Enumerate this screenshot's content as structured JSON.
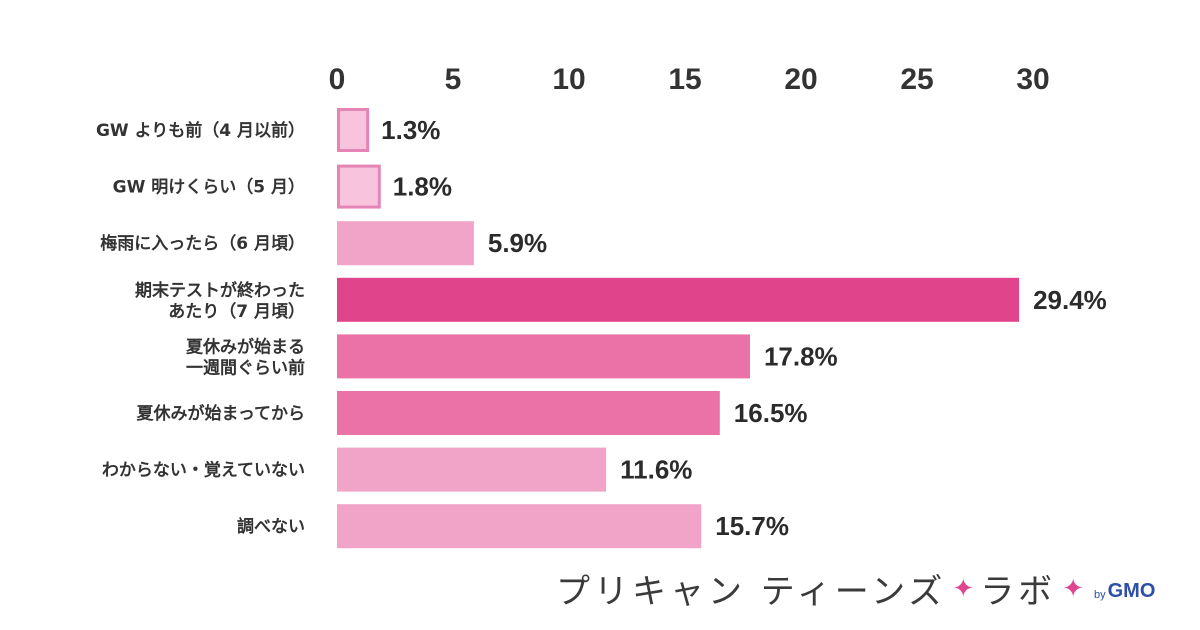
{
  "chart_data": {
    "type": "bar",
    "orientation": "horizontal",
    "axis_position": "top",
    "xlim": [
      0,
      30
    ],
    "ticks": [
      "0",
      "5",
      "10",
      "15",
      "20",
      "25",
      "30"
    ],
    "categories": [
      [
        "GW よりも前（4 月以前）"
      ],
      [
        "GW 明けくらい（5 月）"
      ],
      [
        "梅雨に入ったら（6 月頃）"
      ],
      [
        "期末テストが終わった",
        "あたり（7 月頃）"
      ],
      [
        "夏休みが始まる",
        "一週間ぐらい前"
      ],
      [
        "夏休みが始まってから"
      ],
      [
        "わからない・覚えていない"
      ],
      [
        "調べない"
      ]
    ],
    "values": [
      1.3,
      1.8,
      5.9,
      29.4,
      17.8,
      16.5,
      11.6,
      15.7
    ],
    "value_labels": [
      "1.3%",
      "1.8%",
      "5.9%",
      "29.4%",
      "17.8%",
      "16.5%",
      "11.6%",
      "15.7%"
    ],
    "colors": [
      "#f8c3dc",
      "#f8c3dc",
      "#f1a3c8",
      "#e0448b",
      "#ea72a7",
      "#ea72a7",
      "#f1a3c8",
      "#f1a3c8"
    ],
    "outlined": [
      true,
      true,
      false,
      false,
      false,
      false,
      false,
      false
    ],
    "outline_color": "#e585b5",
    "grid": false,
    "legend": "none"
  },
  "brand": {
    "name": "プリキャン ティーンズ",
    "sub": "ラボ",
    "star": "✦",
    "by": "by",
    "company": "GMO"
  }
}
